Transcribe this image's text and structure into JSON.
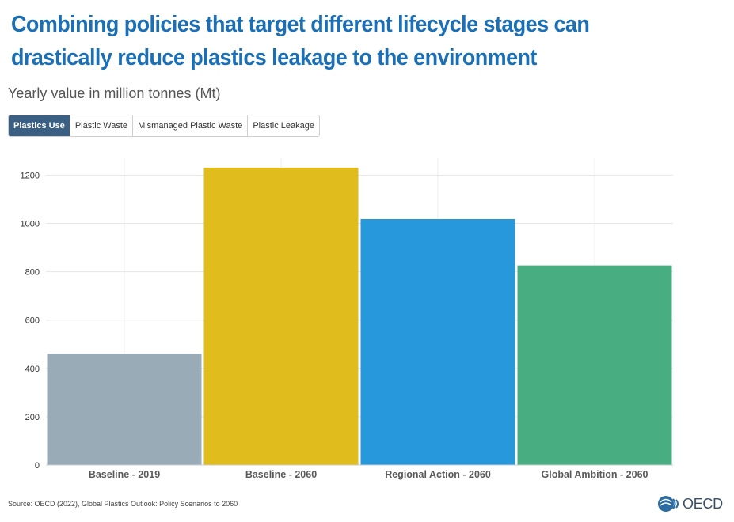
{
  "title": "Combining policies that target different lifecycle stages can drastically reduce plastics leakage to the environment",
  "subtitle": "Yearly value in million tonnes (Mt)",
  "tabs": [
    {
      "label": "Plastics Use",
      "active": true
    },
    {
      "label": "Plastic Waste",
      "active": false
    },
    {
      "label": "Mismanaged Plastic Waste",
      "active": false
    },
    {
      "label": "Plastic Leakage",
      "active": false
    }
  ],
  "source": "Source: OECD (2022), Global Plastics Outlook: Policy Scenarios to 2060",
  "logo": {
    "text": "OECD",
    "icon": "oecd-globe-icon"
  },
  "colors": {
    "title": "#1b6fb6",
    "active_tab": "#3a5f82",
    "bars": [
      "#9aabb8",
      "#e0bc1c",
      "#2898dc",
      "#48ae82"
    ]
  },
  "chart_data": {
    "type": "bar",
    "categories": [
      "Baseline - 2019",
      "Baseline - 2060",
      "Regional Action - 2060",
      "Global Ambition - 2060"
    ],
    "values": [
      460,
      1231,
      1018,
      826
    ],
    "yticks": [
      0,
      200,
      400,
      600,
      800,
      1000,
      1200
    ],
    "ylim": [
      0,
      1270
    ],
    "grid": true,
    "legend": "none"
  }
}
